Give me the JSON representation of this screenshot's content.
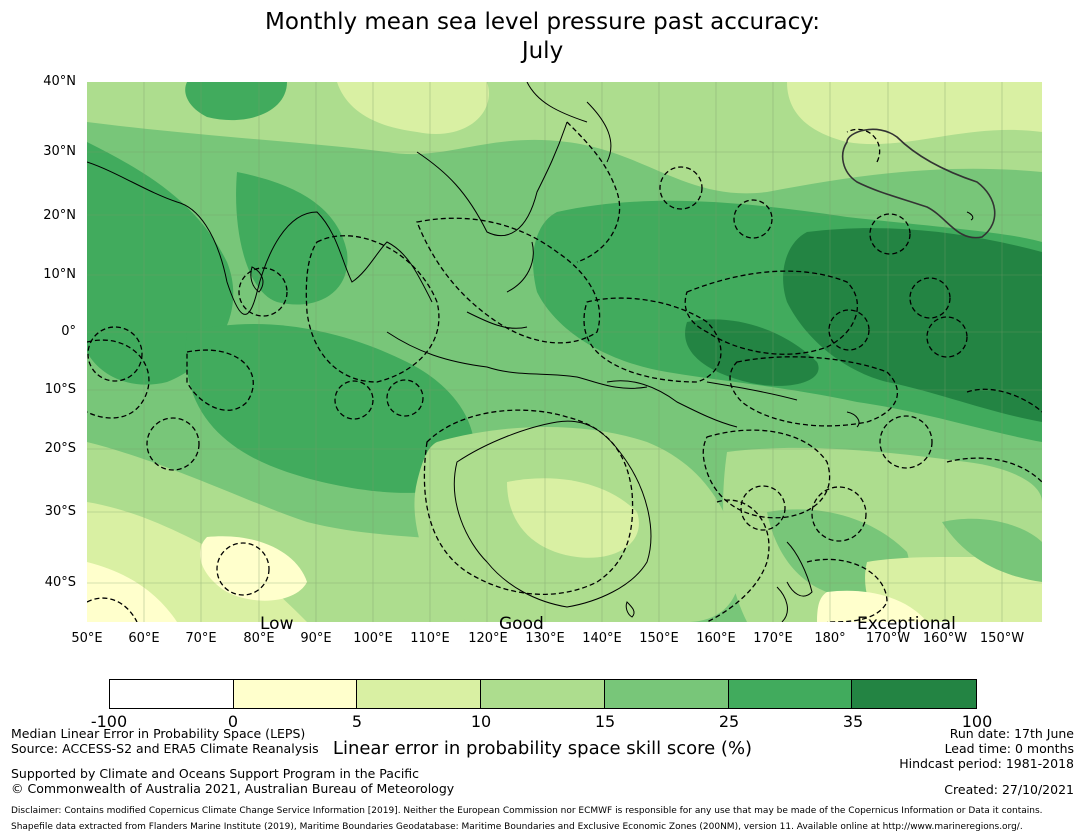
{
  "title": "Monthly mean sea level pressure past accuracy:\nJuly",
  "map": {
    "lat_labels": [
      "40°N",
      "30°N",
      "20°N",
      "10°N",
      "0°",
      "10°S",
      "20°S",
      "30°S",
      "40°S"
    ],
    "lon_labels": [
      "50°E",
      "60°E",
      "70°E",
      "80°E",
      "90°E",
      "100°E",
      "110°E",
      "120°E",
      "130°E",
      "140°E",
      "150°E",
      "160°E",
      "170°E",
      "180°",
      "170°W",
      "160°W",
      "150°W"
    ],
    "quality_labels": {
      "low": "Low",
      "good": "Good",
      "exceptional": "Exceptional"
    }
  },
  "colorbar": {
    "label": "Linear error in probability space skill score (%)",
    "ticks": [
      "-100",
      "0",
      "5",
      "10",
      "15",
      "25",
      "35",
      "100"
    ],
    "colors": [
      "#ffffff",
      "#ffffcc",
      "#d9f0a3",
      "#addd8e",
      "#78c679",
      "#41ab5d",
      "#238443"
    ]
  },
  "footer": {
    "left_line1": "Median Linear Error in Probability Space (LEPS)",
    "left_line2": "Source: ACCESS-S2 and ERA5 Climate Reanalysis",
    "left_line3": "Supported by Climate and Oceans Support Program in the Pacific",
    "left_line4": "© Commonwealth of Australia 2021, Australian Bureau of Meteorology",
    "run_date": "Run date: 17th June",
    "lead_time": "Lead time: 0 months",
    "hindcast": "Hindcast period: 1981-2018",
    "created": "Created: 27/10/2021",
    "disclaimer1": "Disclaimer: Contains modified Copernicus Climate Change Service Information [2019]. Neither the European Commission nor ECMWF is responsible for any use that may be made of the Copernicus Information or Data it contains.",
    "disclaimer2": "Shapefile data extracted from Flanders Marine Institute (2019), Maritime Boundaries Geodatabase: Maritime Boundaries and Exclusive Economic Zones (200NM), version 11. Available online at http://www.marineregions.org/."
  }
}
